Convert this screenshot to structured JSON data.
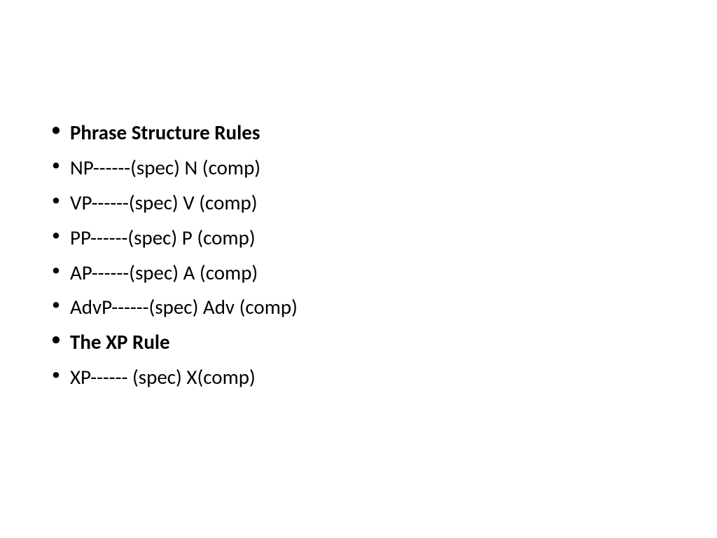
{
  "slide": {
    "background_color": "#ffffff",
    "text_color": "#000000",
    "font_family": "Calibri",
    "font_size_pt": 22,
    "line_height": 1.72,
    "bullet_char": "•",
    "items": [
      {
        "text": "Phrase Structure Rules",
        "bold": true
      },
      {
        "text": "NP------(spec) N (comp)",
        "bold": false
      },
      {
        "text": "VP------(spec) V (comp)",
        "bold": false
      },
      {
        "text": "PP------(spec) P (comp)",
        "bold": false
      },
      {
        "text": "AP------(spec) A (comp)",
        "bold": false
      },
      {
        "text": "AdvP------(spec) Adv (comp)",
        "bold": false
      },
      {
        "text": "The XP Rule",
        "bold": true
      },
      {
        "text": "XP------ (spec) X(comp)",
        "bold": false
      }
    ]
  }
}
